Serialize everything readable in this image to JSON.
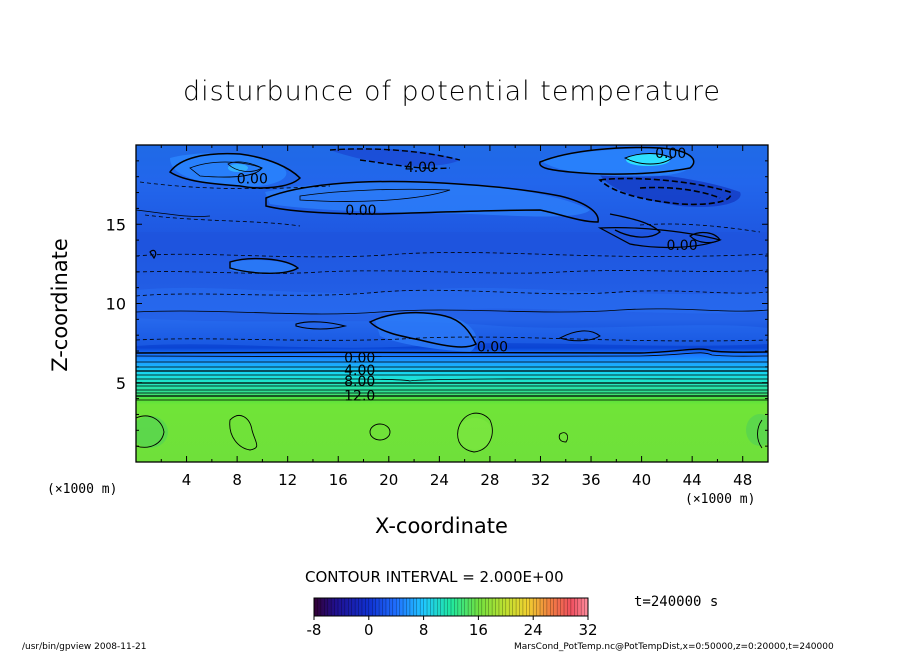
{
  "chart_data": {
    "type": "heatmap",
    "title": "disturbunce of potential temperature",
    "xlabel": "X-coordinate",
    "ylabel": "Z-coordinate",
    "x_unit_label": "(×1000 m)",
    "xlim": [
      0,
      50
    ],
    "ylim": [
      0,
      20
    ],
    "x_ticks": [
      4,
      8,
      12,
      16,
      20,
      24,
      28,
      32,
      36,
      40,
      44,
      48
    ],
    "y_ticks": [
      5,
      10,
      15
    ],
    "contour_interval": "CONTOUR INTERVAL = 2.000E+00",
    "colorbar": {
      "ticks": [
        -8,
        0,
        8,
        16,
        24,
        32
      ],
      "range": [
        -8,
        32
      ]
    },
    "contour_labels": [
      {
        "text": "4.00",
        "x": 22.5,
        "z": 18.6
      },
      {
        "text": "0.00",
        "x": 9.2,
        "z": 17.9
      },
      {
        "text": "0.00",
        "x": 17.8,
        "z": 15.9
      },
      {
        "text": "0.00",
        "x": 42.3,
        "z": 19.5
      },
      {
        "text": "0.00",
        "x": 43.2,
        "z": 13.7
      },
      {
        "text": "0.00",
        "x": 28.2,
        "z": 7.3
      },
      {
        "text": "0.00",
        "x": 17.7,
        "z": 6.6
      },
      {
        "text": "4.00",
        "x": 17.7,
        "z": 5.8
      },
      {
        "text": "8.00",
        "x": 17.7,
        "z": 5.1
      },
      {
        "text": "12.0",
        "x": 17.7,
        "z": 4.2
      }
    ],
    "time": "t=240000 s"
  },
  "footer": {
    "left": "/usr/bin/gpview   2008-11-21",
    "right": "MarsCond_PotTemp.nc@PotTempDist,x=0:50000,z=0:20000,t=240000"
  }
}
